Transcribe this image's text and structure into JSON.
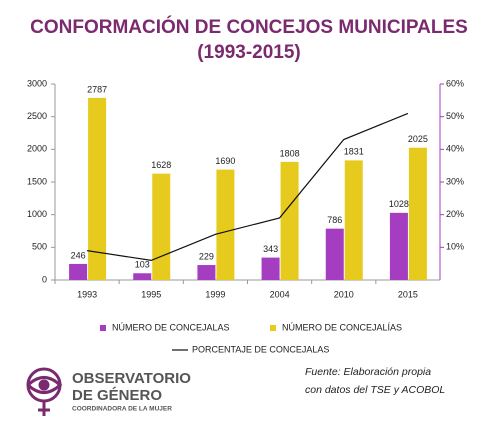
{
  "chart_data": {
    "type": "bar",
    "title": "CONFORMACIÓN DE CONCEJOS MUNICIPALES",
    "subtitle": "(1993-2015)",
    "categories": [
      "1993",
      "1995",
      "1999",
      "2004",
      "2010",
      "2015"
    ],
    "series": [
      {
        "name": "NÚMERO DE CONCEJALAS",
        "color": "#a43dbf",
        "type": "bar",
        "values": [
          246,
          103,
          229,
          343,
          786,
          1028
        ]
      },
      {
        "name": "NÚMERO DE CONCEJALÍAS",
        "color": "#e6cb1e",
        "type": "bar",
        "values": [
          2787,
          1628,
          1690,
          1808,
          1831,
          2025
        ]
      },
      {
        "name": "PORCENTAJE DE CONCEJALAS",
        "color": "#111111",
        "type": "line",
        "axis": "y2",
        "values": [
          9,
          6,
          14,
          19,
          43,
          51
        ]
      }
    ],
    "ylim": [
      0,
      3000
    ],
    "yticks": [
      0,
      500,
      1000,
      1500,
      2000,
      2500,
      3000
    ],
    "y2lim": [
      0,
      60
    ],
    "y2ticks": [
      {
        "value": 10,
        "label": "10%"
      },
      {
        "value": 20,
        "label": "20%"
      },
      {
        "value": 30,
        "label": "30%"
      },
      {
        "value": 40,
        "label": "40%"
      },
      {
        "value": 50,
        "label": "50%"
      },
      {
        "value": 60,
        "label": "60%"
      }
    ],
    "grid": false,
    "source": [
      "Fuente: Elaboración propia",
      "con datos del TSE y ACOBOL"
    ],
    "logo": [
      "OBSERVATORIO",
      "DE GÉNERO",
      "COORDINADORA DE LA MUJER"
    ]
  }
}
